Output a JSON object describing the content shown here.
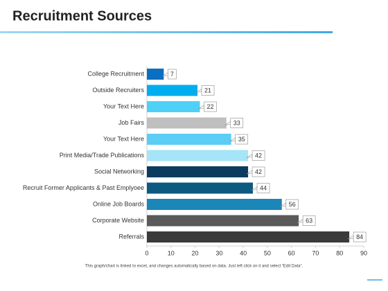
{
  "chart_data": {
    "type": "hbar",
    "title": "Recruitment Sources",
    "footnote": "This graph/chart is linked to excel, and changes automatically based on data. Just left click on it and select “Edit Data”.",
    "categories": [
      "College Recruitment",
      "Outside Recruiters",
      "Your Text Here",
      "Job Fairs",
      "Your Text Here",
      "Print Media/Trade Publications",
      "Social Networking",
      "Recruit Former Applicants & Past Emplyoee",
      "Online Job Boards",
      "Corporate Website",
      "Referrals"
    ],
    "values": [
      7,
      21,
      22,
      33,
      35,
      42,
      42,
      44,
      56,
      63,
      84
    ],
    "colors": [
      "#0a6fc0",
      "#00aeef",
      "#4fd1f7",
      "#bfbfbf",
      "#5ccdf4",
      "#a6e4f8",
      "#0b3b5e",
      "#0c5a80",
      "#1b86b8",
      "#5a5a5a",
      "#3b3b3b"
    ],
    "xlim": [
      0,
      90
    ],
    "xticks": [
      0,
      10,
      20,
      30,
      40,
      50,
      60,
      70,
      80,
      90
    ]
  }
}
